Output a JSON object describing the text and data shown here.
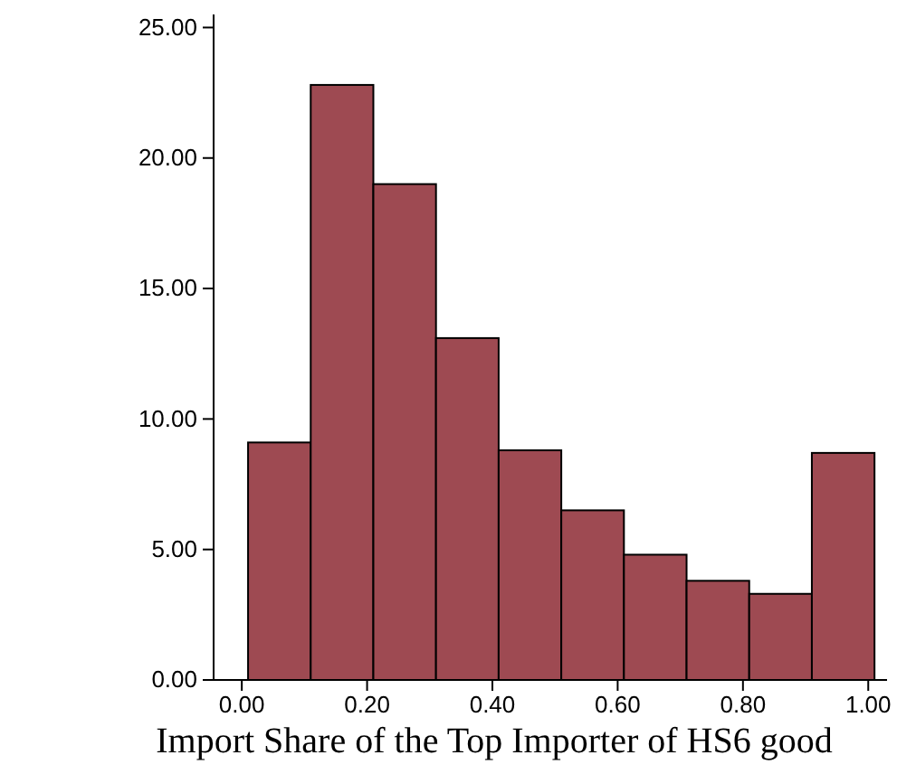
{
  "chart_data": {
    "type": "histogram",
    "xlabel": "Import Share of the Top Importer of HS6 good",
    "bins": [
      0.01,
      0.11,
      0.21,
      0.31,
      0.41,
      0.51,
      0.61,
      0.71,
      0.81,
      0.91,
      1.01
    ],
    "values": [
      9.1,
      22.8,
      19.0,
      13.1,
      8.8,
      6.5,
      4.8,
      3.8,
      3.3,
      8.7
    ],
    "color": "#9e4a52",
    "xlim": [
      -0.045,
      1.03
    ],
    "xticks": [
      {
        "value": 0,
        "label": "0.00"
      },
      {
        "value": 0.2,
        "label": "0.20"
      },
      {
        "value": 0.4,
        "label": "0.40"
      },
      {
        "value": 0.6,
        "label": "0.60"
      },
      {
        "value": 0.8,
        "label": "0.80"
      },
      {
        "value": 1,
        "label": "1.00"
      }
    ],
    "ylim": [
      0,
      25.5
    ],
    "yticks": [
      {
        "value": 0,
        "label": "0.00"
      },
      {
        "value": 5,
        "label": "5.00"
      },
      {
        "value": 10,
        "label": "10.00"
      },
      {
        "value": 15,
        "label": "15.00"
      },
      {
        "value": 20,
        "label": "20.00"
      },
      {
        "value": 25,
        "label": "25.00"
      }
    ],
    "grid": false
  }
}
